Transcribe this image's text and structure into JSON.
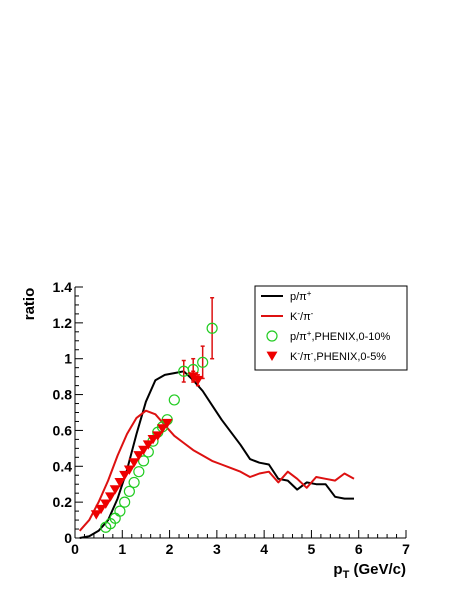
{
  "chart_data": {
    "type": "line",
    "title": "",
    "xlabel": "p",
    "xlabel_sub": "T",
    "xlabel_unit": " (GeV/c)",
    "ylabel": "ratio",
    "xlim": [
      0,
      7
    ],
    "ylim": [
      0,
      1.4
    ],
    "x_ticks": [
      0,
      1,
      2,
      3,
      4,
      5,
      6,
      7
    ],
    "x_tick_labels": [
      "0",
      "1",
      "2",
      "3",
      "4",
      "5",
      "6",
      "7"
    ],
    "y_ticks": [
      0,
      0.2,
      0.4,
      0.6,
      0.8,
      1.0,
      1.2,
      1.4
    ],
    "y_tick_labels": [
      "0",
      "0.2",
      "0.4",
      "0.6",
      "0.8",
      "1",
      "1.2",
      "1.4"
    ],
    "grid": false,
    "legend_position": "top-right",
    "legend": [
      {
        "base": "p/π",
        "sup1": "+",
        "mid": "",
        "sup2": "",
        "tail": ""
      },
      {
        "base": "K",
        "sup1": "-",
        "mid": "/π",
        "sup2": "-",
        "tail": ""
      },
      {
        "base": "p/π",
        "sup1": "+",
        "mid": ",PHENIX,0-10%",
        "sup2": "",
        "tail": ""
      },
      {
        "base": "K",
        "sup1": "-",
        "mid": "/π",
        "sup2": "-",
        "tail": ",PHENIX,0-5%"
      }
    ],
    "series": [
      {
        "kind": "line",
        "color": "#000000",
        "x": [
          0.1,
          0.3,
          0.5,
          0.7,
          0.9,
          1.1,
          1.3,
          1.5,
          1.7,
          1.9,
          2.1,
          2.3,
          2.5,
          2.7,
          2.9,
          3.1,
          3.3,
          3.5,
          3.7,
          3.9,
          4.1,
          4.3,
          4.5,
          4.7,
          4.9,
          5.1,
          5.3,
          5.5,
          5.7,
          5.9
        ],
        "y": [
          0.0,
          0.01,
          0.04,
          0.1,
          0.22,
          0.38,
          0.58,
          0.76,
          0.88,
          0.91,
          0.92,
          0.93,
          0.88,
          0.82,
          0.74,
          0.66,
          0.59,
          0.52,
          0.44,
          0.42,
          0.41,
          0.33,
          0.32,
          0.27,
          0.31,
          0.3,
          0.3,
          0.23,
          0.22,
          0.22
        ]
      },
      {
        "kind": "line",
        "color": "#dd1111",
        "x": [
          0.1,
          0.3,
          0.5,
          0.7,
          0.9,
          1.1,
          1.3,
          1.5,
          1.7,
          1.9,
          2.1,
          2.3,
          2.5,
          2.7,
          2.9,
          3.1,
          3.3,
          3.5,
          3.7,
          3.9,
          4.1,
          4.3,
          4.5,
          4.7,
          4.9,
          5.1,
          5.3,
          5.5,
          5.7,
          5.9
        ],
        "y": [
          0.04,
          0.1,
          0.2,
          0.32,
          0.46,
          0.58,
          0.67,
          0.71,
          0.69,
          0.63,
          0.57,
          0.53,
          0.49,
          0.46,
          0.43,
          0.41,
          0.39,
          0.37,
          0.34,
          0.36,
          0.37,
          0.31,
          0.37,
          0.33,
          0.28,
          0.34,
          0.33,
          0.32,
          0.36,
          0.33
        ]
      },
      {
        "kind": "marker",
        "marker": "open-circle",
        "color": "#22cc22",
        "error_color": "#dd1111",
        "x": [
          0.65,
          0.75,
          0.85,
          0.95,
          1.05,
          1.15,
          1.25,
          1.35,
          1.45,
          1.55,
          1.65,
          1.75,
          1.85,
          1.95,
          2.1,
          2.3,
          2.5,
          2.7,
          2.9
        ],
        "y": [
          0.06,
          0.08,
          0.11,
          0.15,
          0.2,
          0.26,
          0.31,
          0.37,
          0.43,
          0.48,
          0.54,
          0.59,
          0.62,
          0.66,
          0.77,
          0.93,
          0.94,
          0.98,
          1.17
        ],
        "err": [
          0.0,
          0.0,
          0.0,
          0.0,
          0.0,
          0.0,
          0.0,
          0.0,
          0.0,
          0.0,
          0.0,
          0.0,
          0.0,
          0.0,
          0.0,
          0.06,
          0.06,
          0.09,
          0.17
        ]
      },
      {
        "kind": "marker",
        "marker": "filled-triangle-down",
        "color": "#ee0000",
        "error_color": "#ee0000",
        "x": [
          0.45,
          0.55,
          0.65,
          0.75,
          0.85,
          0.95,
          1.05,
          1.15,
          1.25,
          1.35,
          1.45,
          1.55,
          1.65,
          1.75,
          1.85,
          1.95,
          2.5,
          2.6
        ],
        "y": [
          0.13,
          0.16,
          0.19,
          0.23,
          0.27,
          0.31,
          0.35,
          0.38,
          0.42,
          0.46,
          0.49,
          0.52,
          0.55,
          0.57,
          0.61,
          0.64,
          0.9,
          0.88
        ],
        "err": [
          0.0,
          0.0,
          0.0,
          0.0,
          0.0,
          0.0,
          0.0,
          0.0,
          0.0,
          0.0,
          0.0,
          0.0,
          0.0,
          0.0,
          0.0,
          0.0,
          0.03,
          0.03
        ]
      }
    ]
  }
}
